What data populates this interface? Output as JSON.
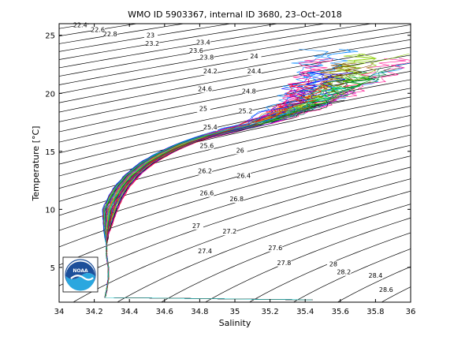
{
  "chart_data": {
    "type": "line",
    "title": "WMO ID 5903367, internal ID 3680, 23–Oct–2018",
    "xlabel": "Salinity",
    "ylabel": "Temperature [°C]",
    "xlim": [
      34,
      36
    ],
    "ylim": [
      2,
      26
    ],
    "xticks": [
      "34",
      "34.2",
      "34.4",
      "34.6",
      "34.8",
      "35",
      "35.2",
      "35.4",
      "35.6",
      "35.8",
      "36"
    ],
    "yticks": [
      "5",
      "10",
      "15",
      "20",
      "25"
    ],
    "grid": false,
    "isopycnal_labels": [
      {
        "text": "22.4",
        "x": 34.12,
        "y": 25.7
      },
      {
        "text": "22.6",
        "x": 34.22,
        "y": 25.3
      },
      {
        "text": "22.8",
        "x": 34.29,
        "y": 24.9
      },
      {
        "text": "23",
        "x": 34.52,
        "y": 24.8
      },
      {
        "text": "23.2",
        "x": 34.53,
        "y": 24.1
      },
      {
        "text": "23.4",
        "x": 34.82,
        "y": 24.2
      },
      {
        "text": "23.6",
        "x": 34.78,
        "y": 23.5
      },
      {
        "text": "23.8",
        "x": 34.84,
        "y": 22.9
      },
      {
        "text": "24",
        "x": 35.11,
        "y": 23.0
      },
      {
        "text": "24.2",
        "x": 34.86,
        "y": 21.7
      },
      {
        "text": "24.4",
        "x": 35.11,
        "y": 21.7
      },
      {
        "text": "24.6",
        "x": 34.83,
        "y": 20.2
      },
      {
        "text": "24.8",
        "x": 35.08,
        "y": 20.0
      },
      {
        "text": "25",
        "x": 34.82,
        "y": 18.5
      },
      {
        "text": "25.2",
        "x": 35.06,
        "y": 18.3
      },
      {
        "text": "25.4",
        "x": 34.86,
        "y": 16.9
      },
      {
        "text": "25.6",
        "x": 34.84,
        "y": 15.3
      },
      {
        "text": "26",
        "x": 35.03,
        "y": 14.9
      },
      {
        "text": "26.2",
        "x": 34.83,
        "y": 13.1
      },
      {
        "text": "26.4",
        "x": 35.05,
        "y": 12.7
      },
      {
        "text": "26.6",
        "x": 34.84,
        "y": 11.2
      },
      {
        "text": "26.8",
        "x": 35.01,
        "y": 10.7
      },
      {
        "text": "27",
        "x": 34.78,
        "y": 8.4
      },
      {
        "text": "27.2",
        "x": 34.97,
        "y": 7.9
      },
      {
        "text": "27.4",
        "x": 34.83,
        "y": 6.2
      },
      {
        "text": "27.6",
        "x": 35.23,
        "y": 6.5
      },
      {
        "text": "27.8",
        "x": 35.28,
        "y": 5.2
      },
      {
        "text": "28",
        "x": 35.56,
        "y": 5.1
      },
      {
        "text": "28.2",
        "x": 35.62,
        "y": 4.4
      },
      {
        "text": "28.4",
        "x": 35.8,
        "y": 4.1
      },
      {
        "text": "28.6",
        "x": 35.86,
        "y": 2.9
      }
    ],
    "profile_core": {
      "x": [
        34.26,
        34.27,
        34.28,
        34.28,
        34.27,
        34.27,
        34.27,
        34.28,
        34.29,
        34.32,
        34.36,
        34.42,
        34.5,
        34.58,
        34.66,
        34.74,
        34.82,
        34.92,
        35.02,
        35.1,
        35.18,
        35.25,
        35.32,
        35.38,
        35.44
      ],
      "y": [
        2.3,
        3.0,
        4.0,
        5.0,
        6.0,
        7.0,
        8.0,
        9.0,
        10.0,
        11.0,
        12.0,
        13.0,
        14.0,
        14.7,
        15.3,
        15.8,
        16.2,
        16.6,
        17.0,
        17.3,
        17.7,
        18.1,
        18.6,
        19.0,
        19.4
      ]
    },
    "number_of_profiles": 60,
    "logo": "NOAA"
  }
}
